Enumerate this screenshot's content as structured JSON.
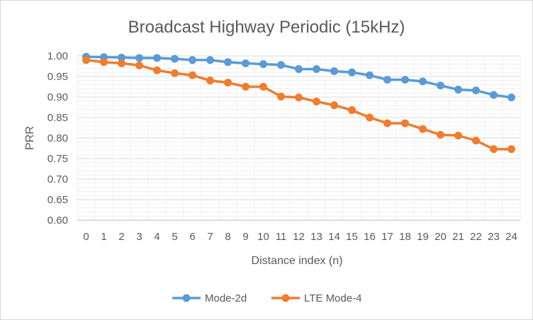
{
  "chart_data": {
    "type": "line",
    "title": "Broadcast Highway Periodic (15kHz)",
    "xlabel": "Distance index (n)",
    "ylabel": "PRR",
    "x": [
      0,
      1,
      2,
      3,
      4,
      5,
      6,
      7,
      8,
      9,
      10,
      11,
      12,
      13,
      14,
      15,
      16,
      17,
      18,
      19,
      20,
      21,
      22,
      23,
      24
    ],
    "ylim": [
      0.6,
      1.0
    ],
    "yticks": [
      "0.60",
      "0.65",
      "0.70",
      "0.75",
      "0.80",
      "0.85",
      "0.90",
      "0.95",
      "1.00"
    ],
    "grid": true,
    "legend_position": "bottom",
    "series": [
      {
        "name": "Mode-2d",
        "color": "#5b9bd5",
        "values": [
          0.998,
          0.997,
          0.996,
          0.995,
          0.995,
          0.993,
          0.99,
          0.99,
          0.985,
          0.982,
          0.98,
          0.978,
          0.968,
          0.968,
          0.963,
          0.96,
          0.953,
          0.942,
          0.942,
          0.938,
          0.928,
          0.918,
          0.916,
          0.905,
          0.899
        ]
      },
      {
        "name": "LTE Mode-4",
        "color": "#ed7d31",
        "values": [
          0.99,
          0.985,
          0.982,
          0.977,
          0.965,
          0.958,
          0.953,
          0.94,
          0.935,
          0.925,
          0.925,
          0.901,
          0.899,
          0.889,
          0.88,
          0.868,
          0.85,
          0.836,
          0.836,
          0.822,
          0.808,
          0.806,
          0.794,
          0.773,
          0.773
        ]
      }
    ]
  }
}
